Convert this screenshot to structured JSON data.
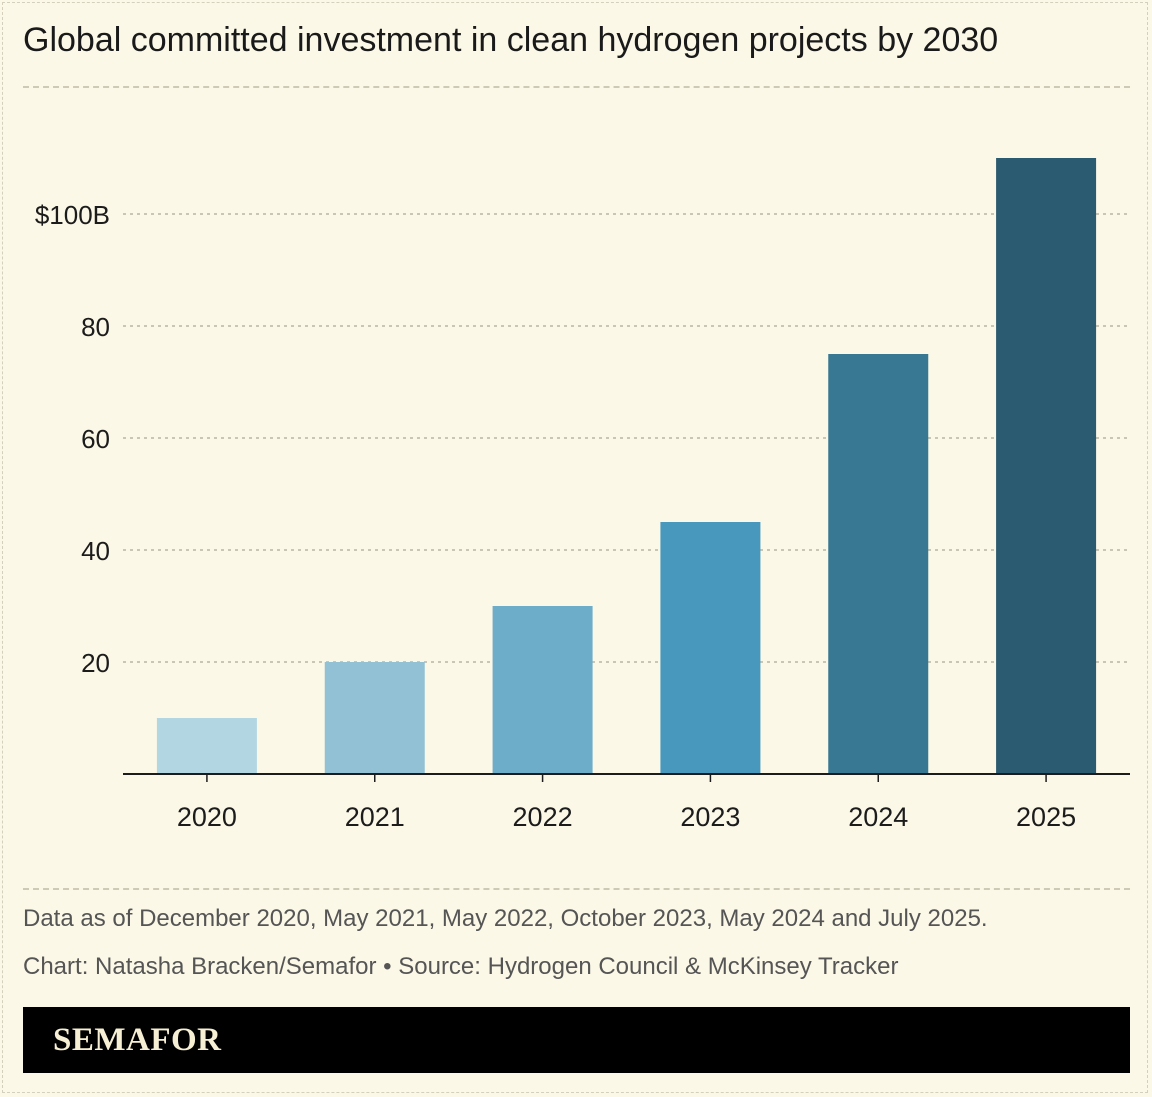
{
  "title": "Global committed investment in clean hydrogen projects by 2030",
  "notes": {
    "data_as_of": "Data as of December 2020, May 2021, May 2022, October 2023, May 2024 and July 2025.",
    "credit": "Chart: Natasha Bracken/Semafor • Source: Hydrogen Council & McKinsey Tracker"
  },
  "brand": "SEMAFOR",
  "colors": {
    "background": "#fbf8e7",
    "bars": [
      "#b3d7e2",
      "#92c1d6",
      "#6eadc9",
      "#4898bd",
      "#397893",
      "#2a5b70"
    ],
    "axis": "#1c1c1c",
    "grid": "#b9b6a6"
  },
  "chart_data": {
    "type": "bar",
    "title": "Global committed investment in clean hydrogen projects by 2030",
    "categories": [
      "2020",
      "2021",
      "2022",
      "2023",
      "2024",
      "2025"
    ],
    "values": [
      10,
      20,
      30,
      45,
      75,
      110
    ],
    "ylim": [
      0,
      115
    ],
    "yticks": [
      20,
      40,
      60,
      80,
      100
    ],
    "ytick_labels": [
      "20",
      "40",
      "60",
      "80",
      "$100B"
    ],
    "grid": true,
    "legend": "none"
  }
}
